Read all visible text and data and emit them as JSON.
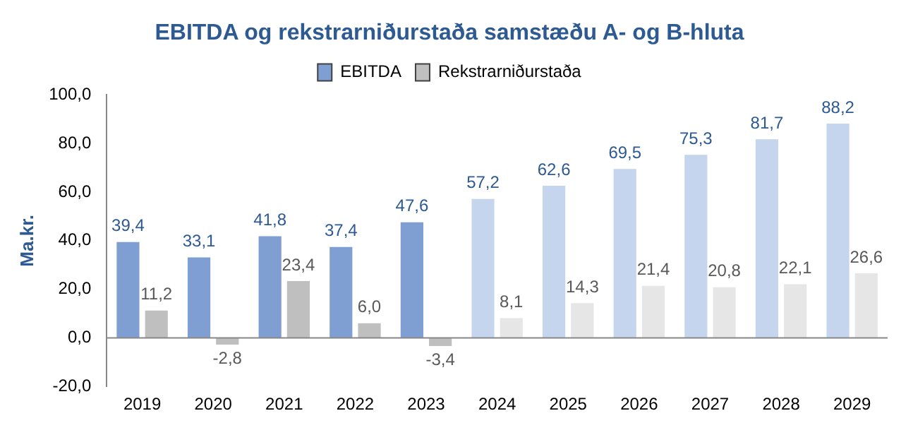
{
  "chart_data": {
    "type": "bar",
    "title": "EBITDA og rekstrarniðurstaða samstæðu A- og B-hluta",
    "ylabel": "Ma.kr.",
    "categories": [
      "2019",
      "2020",
      "2021",
      "2022",
      "2023",
      "2024",
      "2025",
      "2026",
      "2027",
      "2028",
      "2029"
    ],
    "series": [
      {
        "name": "EBITDA",
        "color": "#7f9fd3",
        "colors": [
          "#7f9fd3",
          "#7f9fd3",
          "#7f9fd3",
          "#7f9fd3",
          "#7f9fd3",
          "#c5d5ee",
          "#c5d5ee",
          "#c5d5ee",
          "#c5d5ee",
          "#c5d5ee",
          "#c5d5ee"
        ],
        "values": [
          39.4,
          33.1,
          41.8,
          37.4,
          47.6,
          57.2,
          62.6,
          69.5,
          75.3,
          81.7,
          88.2
        ],
        "value_labels": [
          "39,4",
          "33,1",
          "41,8",
          "37,4",
          "47,6",
          "57,2",
          "62,6",
          "69,5",
          "75,3",
          "81,7",
          "88,2"
        ]
      },
      {
        "name": "Rekstrarniðurstaða",
        "color": "#bfbfbf",
        "colors": [
          "#bfbfbf",
          "#bfbfbf",
          "#bfbfbf",
          "#bfbfbf",
          "#bfbfbf",
          "#e6e6e6",
          "#e6e6e6",
          "#e6e6e6",
          "#e6e6e6",
          "#e6e6e6",
          "#e6e6e6"
        ],
        "values": [
          11.2,
          -2.8,
          23.4,
          6.0,
          -3.4,
          8.1,
          14.3,
          21.4,
          20.8,
          22.1,
          26.6
        ],
        "value_labels": [
          "11,2",
          "-2,8",
          "23,4",
          "6,0",
          "-3,4",
          "8,1",
          "14,3",
          "21,4",
          "20,8",
          "22,1",
          "26,6"
        ]
      }
    ],
    "ylim": [
      -20,
      100
    ],
    "yticks": [
      {
        "value": -20,
        "label": "-20,0"
      },
      {
        "value": 0,
        "label": "0,0"
      },
      {
        "value": 20,
        "label": "20,0"
      },
      {
        "value": 40,
        "label": "40,0"
      },
      {
        "value": 60,
        "label": "60,0"
      },
      {
        "value": 80,
        "label": "80,0"
      },
      {
        "value": 100,
        "label": "100,0"
      }
    ],
    "ref_lines": [
      {
        "axis": "y",
        "value": 0,
        "color": "#888888"
      }
    ],
    "legend": "top"
  }
}
